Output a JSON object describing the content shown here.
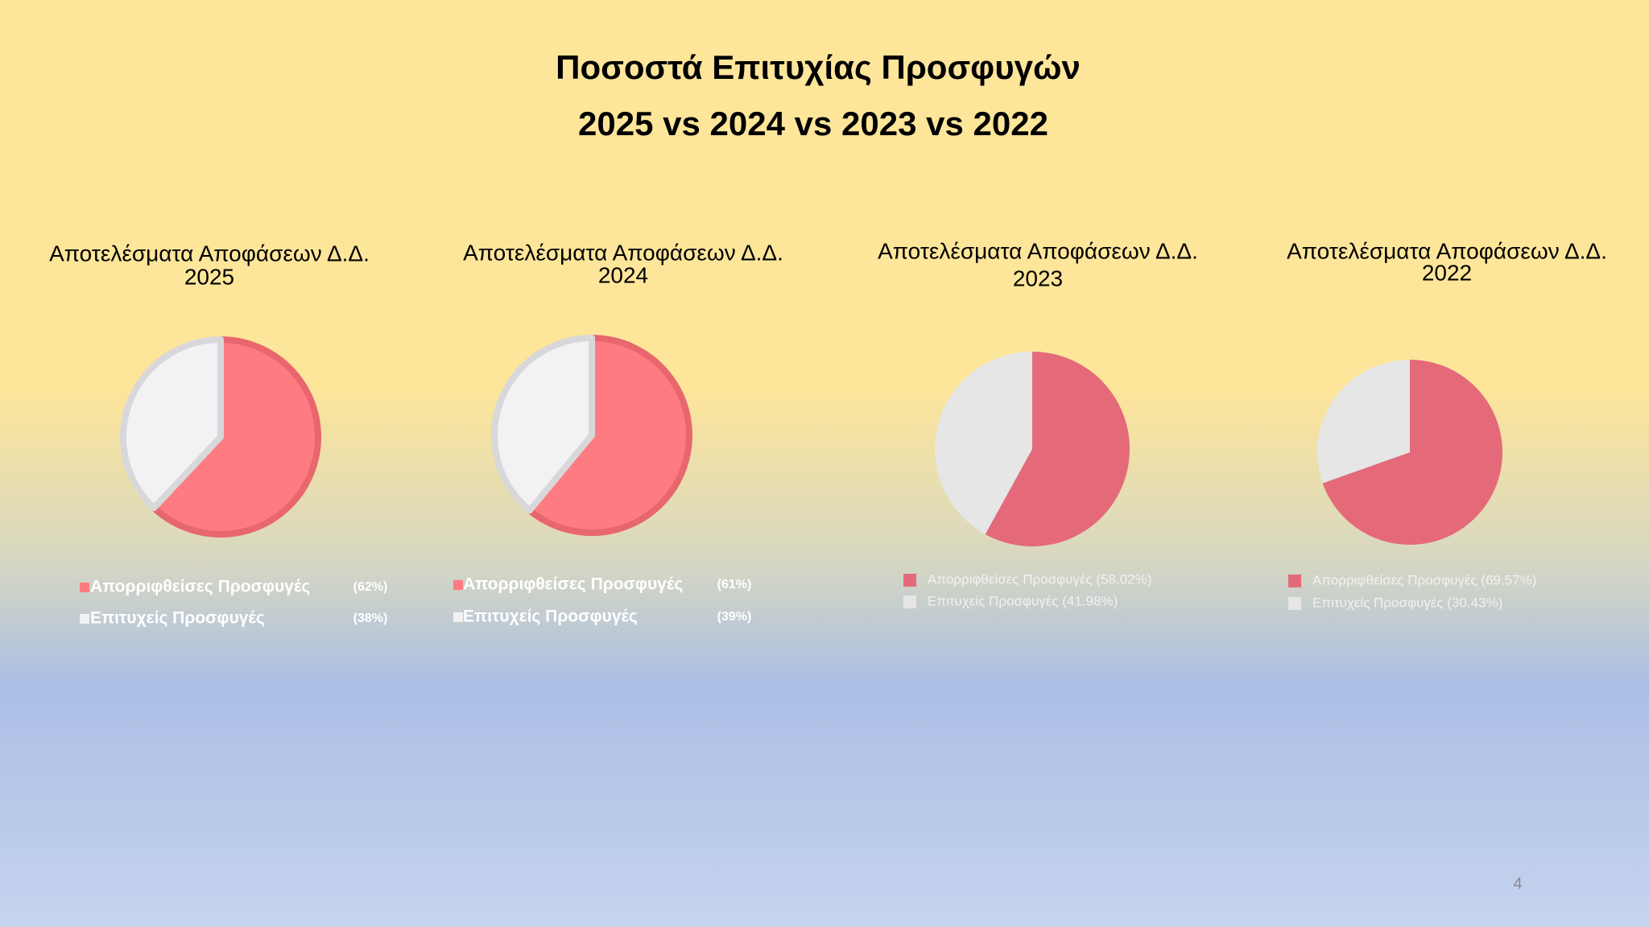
{
  "title": [
    "Ποσοστά Επιτυχίας  Προσφυγών",
    "2025 vs 2024 vs 2023 vs 2022"
  ],
  "page_number": "4",
  "chart_data": [
    {
      "type": "pie",
      "title": "Αποτελέσματα Αποφάσεων Δ.Δ.",
      "subtitle": "2025",
      "categories": [
        "Απορριφθείσες Προσφυγές",
        "Επιτυχείς Προσφυγές"
      ],
      "values": [
        62,
        38
      ],
      "value_labels": [
        "(62%)",
        "(38%)"
      ],
      "colors": [
        "#ff7b82",
        "#f2f2f4"
      ]
    },
    {
      "type": "pie",
      "title": "Αποτελέσματα Αποφάσεων Δ.Δ.",
      "subtitle": "2024",
      "categories": [
        "Απορριφθείσες Προσφυγές",
        "Επιτυχείς Προσφυγές"
      ],
      "values": [
        61,
        39
      ],
      "value_labels": [
        "(61%)",
        "(39%)"
      ],
      "colors": [
        "#ff7b82",
        "#f2f2f4"
      ]
    },
    {
      "type": "pie",
      "title": "Αποτελέσματα Αποφάσεων Δ.Δ.",
      "subtitle": "2023",
      "categories": [
        "Απορριφθείσες Προσφυγές (58.02%)",
        "Επιτυχείς Προσφυγές (41.98%)"
      ],
      "values": [
        58.02,
        41.98
      ],
      "colors": [
        "#e46a7a",
        "#e6e6e6"
      ]
    },
    {
      "type": "pie",
      "title": "Αποτελέσματα Αποφάσεων Δ.Δ.",
      "subtitle": "2022",
      "categories": [
        "Απορριφθείσες Προσφυγές (69.57%)",
        "Επιτυχείς Προσφυγές (30.43%)"
      ],
      "values": [
        69.57,
        30.43
      ],
      "colors": [
        "#e46a7a",
        "#e6e6e6"
      ]
    }
  ]
}
